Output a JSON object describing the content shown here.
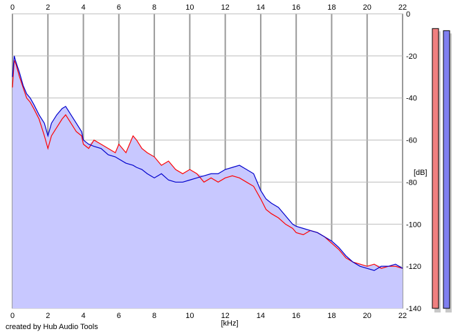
{
  "credit": "created by Hub Audio Tools",
  "chart_data": {
    "type": "line",
    "xlabel": "[kHz]",
    "ylabel": "[dB]",
    "xlim": [
      0,
      22
    ],
    "ylim": [
      -140,
      0
    ],
    "x_ticks": [
      0,
      2,
      4,
      6,
      8,
      10,
      12,
      14,
      16,
      18,
      20,
      22
    ],
    "y_ticks": [
      0,
      -20,
      -40,
      -60,
      -80,
      -100,
      -120,
      -140
    ],
    "grid": true,
    "colors": {
      "left": "#ff0000",
      "right": "#0000cc",
      "fill": "#c8c8ff",
      "meter_left": "#f08080",
      "meter_right": "#8080f0"
    },
    "series": [
      {
        "id": "left",
        "x": [
          0,
          0.1,
          0.2,
          0.4,
          0.6,
          0.8,
          1.0,
          1.2,
          1.5,
          1.8,
          2.0,
          2.2,
          2.5,
          2.8,
          3.0,
          3.3,
          3.6,
          3.9,
          4.0,
          4.3,
          4.6,
          5.0,
          5.4,
          5.8,
          6.0,
          6.4,
          6.8,
          7.0,
          7.3,
          7.6,
          8.0,
          8.4,
          8.8,
          9.2,
          9.6,
          10.0,
          10.4,
          10.8,
          11.2,
          11.6,
          12.0,
          12.4,
          12.8,
          13.2,
          13.6,
          14.0,
          14.3,
          14.6,
          15.0,
          15.4,
          15.8,
          16.0,
          16.4,
          16.8,
          17.2,
          17.6,
          18.0,
          18.4,
          18.8,
          19.2,
          19.6,
          20.0,
          20.4,
          20.8,
          21.2,
          21.6,
          22.0
        ],
        "values": [
          -35,
          -22,
          -24,
          -30,
          -35,
          -40,
          -42,
          -45,
          -50,
          -58,
          -64,
          -58,
          -54,
          -50,
          -48,
          -52,
          -56,
          -58,
          -62,
          -64,
          -60,
          -62,
          -64,
          -66,
          -62,
          -66,
          -58,
          -60,
          -64,
          -66,
          -68,
          -72,
          -70,
          -74,
          -76,
          -74,
          -76,
          -80,
          -78,
          -80,
          -78,
          -77,
          -78,
          -80,
          -82,
          -88,
          -93,
          -95,
          -97,
          -100,
          -102,
          -104,
          -105,
          -103,
          -104,
          -106,
          -109,
          -112,
          -116,
          -118,
          -119,
          -120,
          -119,
          -121,
          -120,
          -120,
          -121
        ]
      },
      {
        "id": "right",
        "x": [
          0,
          0.1,
          0.2,
          0.4,
          0.6,
          0.8,
          1.0,
          1.2,
          1.5,
          1.8,
          2.0,
          2.2,
          2.5,
          2.8,
          3.0,
          3.3,
          3.6,
          3.9,
          4.0,
          4.3,
          4.6,
          5.0,
          5.4,
          5.8,
          6.0,
          6.4,
          6.8,
          7.0,
          7.3,
          7.6,
          8.0,
          8.4,
          8.8,
          9.2,
          9.6,
          10.0,
          10.4,
          10.8,
          11.2,
          11.6,
          12.0,
          12.4,
          12.8,
          13.2,
          13.6,
          14.0,
          14.3,
          14.6,
          15.0,
          15.4,
          15.8,
          16.0,
          16.4,
          16.8,
          17.2,
          17.6,
          18.0,
          18.4,
          18.8,
          19.2,
          19.6,
          20.0,
          20.4,
          20.8,
          21.2,
          21.6,
          22.0
        ],
        "values": [
          -30,
          -20,
          -23,
          -28,
          -34,
          -38,
          -40,
          -43,
          -48,
          -52,
          -58,
          -52,
          -48,
          -45,
          -44,
          -48,
          -52,
          -56,
          -60,
          -62,
          -63,
          -64,
          -67,
          -68,
          -69,
          -71,
          -72,
          -73,
          -74,
          -76,
          -78,
          -76,
          -79,
          -80,
          -80,
          -79,
          -78,
          -77,
          -76,
          -76,
          -74,
          -73,
          -72,
          -74,
          -76,
          -84,
          -88,
          -90,
          -92,
          -96,
          -100,
          -101,
          -102,
          -103,
          -104,
          -106,
          -108,
          -111,
          -115,
          -118,
          -120,
          -121,
          -122,
          -120,
          -120,
          -119,
          -121
        ]
      }
    ],
    "meters": [
      {
        "id": "meter_left",
        "value_db": -7
      },
      {
        "id": "meter_right",
        "value_db": -8
      }
    ]
  }
}
